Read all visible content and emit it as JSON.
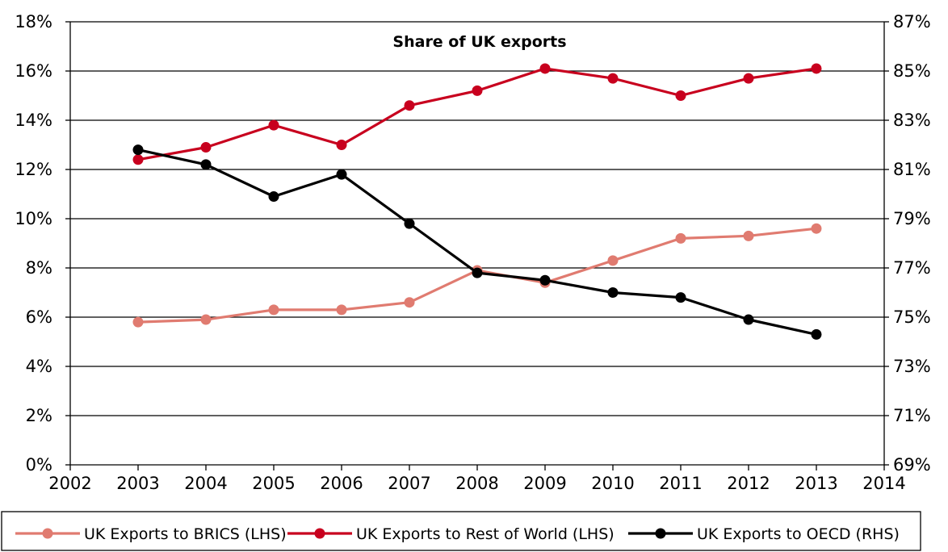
{
  "chart_data": {
    "type": "line",
    "title": "Share of UK exports",
    "x_ticks": [
      "2002",
      "2003",
      "2004",
      "2005",
      "2006",
      "2007",
      "2008",
      "2009",
      "2010",
      "2011",
      "2012",
      "2013",
      "2014"
    ],
    "xlim": [
      2002,
      2014
    ],
    "y_left": {
      "lim": [
        0,
        18
      ],
      "ticks": [
        "0%",
        "2%",
        "4%",
        "6%",
        "8%",
        "10%",
        "12%",
        "14%",
        "16%",
        "18%"
      ]
    },
    "y_right": {
      "lim": [
        69,
        87
      ],
      "ticks": [
        "69%",
        "71%",
        "73%",
        "75%",
        "77%",
        "79%",
        "81%",
        "83%",
        "85%",
        "87%"
      ]
    },
    "grid": "horizontal",
    "legend_position": "bottom",
    "series": [
      {
        "name": "UK Exports to BRICS (LHS)",
        "axis": "left",
        "color": "#e07b70",
        "x": [
          2003,
          2004,
          2005,
          2006,
          2007,
          2008,
          2009,
          2010,
          2011,
          2012,
          2013
        ],
        "values": [
          5.8,
          5.9,
          6.3,
          6.3,
          6.6,
          7.9,
          7.4,
          8.3,
          9.2,
          9.3,
          9.6
        ]
      },
      {
        "name": "UK Exports to Rest of World (LHS)",
        "axis": "left",
        "color": "#c8001e",
        "x": [
          2003,
          2004,
          2005,
          2006,
          2007,
          2008,
          2009,
          2010,
          2011,
          2012,
          2013
        ],
        "values": [
          12.4,
          12.9,
          13.8,
          13.0,
          14.6,
          15.2,
          16.1,
          15.7,
          15.0,
          15.7,
          16.1
        ]
      },
      {
        "name": "UK Exports to OECD (RHS)",
        "axis": "right",
        "color": "#000000",
        "x": [
          2003,
          2004,
          2005,
          2006,
          2007,
          2008,
          2009,
          2010,
          2011,
          2012,
          2013
        ],
        "values": [
          81.8,
          81.2,
          79.9,
          80.8,
          78.8,
          76.8,
          76.5,
          76.0,
          75.8,
          74.9,
          74.3
        ]
      }
    ]
  }
}
